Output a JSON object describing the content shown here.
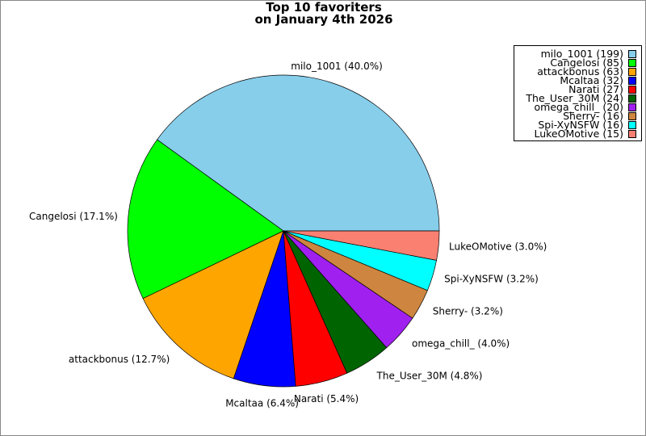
{
  "chart_data": {
    "type": "pie",
    "title_line1": "Top 10 favoriters",
    "title_line2": "on January 4th 2026",
    "start_angle_deg": 0,
    "direction": "counterclockwise",
    "legend_position": "top-right",
    "slices": [
      {
        "name": "milo_1001",
        "value": 199,
        "label": "milo_1001 (40.0%)",
        "legend": "milo_1001 (199)",
        "color": "#87ceeb"
      },
      {
        "name": "Cangelosi",
        "value": 85,
        "label": "Cangelosi (17.1%)",
        "legend": "Cangelosi (85)",
        "color": "#00ff00"
      },
      {
        "name": "attackbonus",
        "value": 63,
        "label": "attackbonus (12.7%)",
        "legend": "attackbonus (63)",
        "color": "#ffa500"
      },
      {
        "name": "Mcaltaa",
        "value": 32,
        "label": "Mcaltaa (6.4%)",
        "legend": "Mcaltaa (32)",
        "color": "#0000ff"
      },
      {
        "name": "Narati",
        "value": 27,
        "label": "Narati (5.4%)",
        "legend": "Narati (27)",
        "color": "#ff0000"
      },
      {
        "name": "The_User_30M",
        "value": 24,
        "label": "The_User_30M (4.8%)",
        "legend": "The_User_30M (24)",
        "color": "#006400"
      },
      {
        "name": "omega_chill_",
        "value": 20,
        "label": "omega_chill_ (4.0%)",
        "legend": "omega_chill_ (20)",
        "color": "#a020f0"
      },
      {
        "name": "Sherry-",
        "value": 16,
        "label": "Sherry- (3.2%)",
        "legend": "Sherry- (16)",
        "color": "#cd853f"
      },
      {
        "name": "Spi-XyNSFW",
        "value": 16,
        "label": "Spi-XyNSFW (3.2%)",
        "legend": "Spi-XyNSFW (16)",
        "color": "#00ffff"
      },
      {
        "name": "LukeOMotive",
        "value": 15,
        "label": "LukeOMotive (3.0%)",
        "legend": "LukeOMotive (15)",
        "color": "#fa8072"
      }
    ]
  }
}
